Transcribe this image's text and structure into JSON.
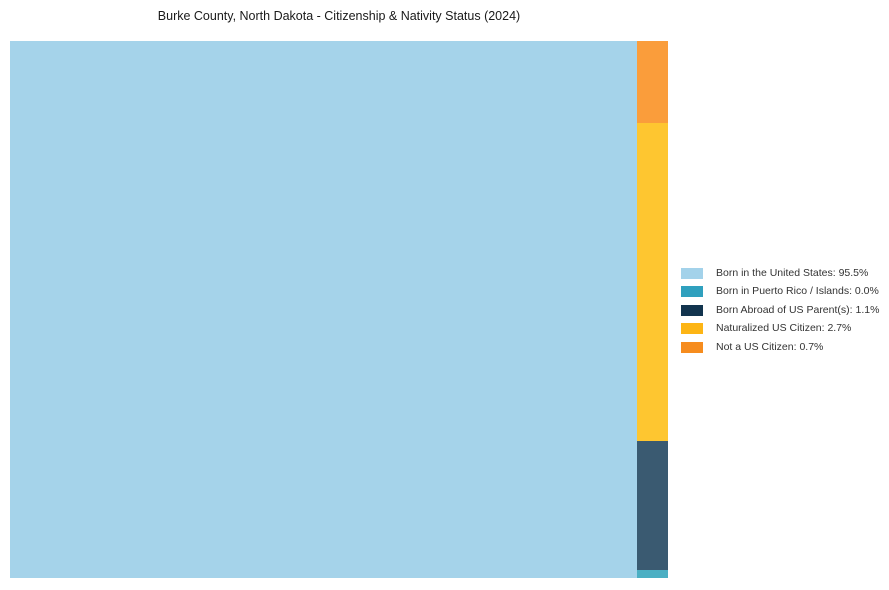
{
  "title": "Burke County, North Dakota - Citizenship & Nativity Status (2024)",
  "chart_data": {
    "type": "treemap",
    "title": "Burke County, North Dakota - Citizenship & Nativity Status (2024)",
    "unit": "%",
    "legend_position": "right",
    "grid": false,
    "layout_note": "single large block at left for dominant category; remaining categories stacked top-to-bottom in a narrow right column ordered: Not a US Citizen, Naturalized US Citizen, Born Abroad of US Parent(s), Born in Puerto Rico / Islands",
    "series": [
      {
        "name": "Born in the United States",
        "value": 95.5,
        "label": "Born in the United States: 95.5%",
        "legend_color": "#A3D2EA",
        "block_color": "#A5D3EA"
      },
      {
        "name": "Born in Puerto Rico / Islands",
        "value": 0.0,
        "label": "Born in Puerto Rico / Islands: 0.0%",
        "legend_color": "#2FA0BE",
        "block_color": "#4BAFC3"
      },
      {
        "name": "Born Abroad of US Parent(s)",
        "value": 1.1,
        "label": "Born Abroad of US Parent(s): 1.1%",
        "legend_color": "#12344E",
        "block_color": "#3A5A71"
      },
      {
        "name": "Naturalized US Citizen",
        "value": 2.7,
        "label": "Naturalized US Citizen: 2.7%",
        "legend_color": "#FDB515",
        "block_color": "#FEC630"
      },
      {
        "name": "Not a US Citizen",
        "value": 0.7,
        "label": "Not a US Citizen: 0.7%",
        "legend_color": "#F68C1E",
        "block_color": "#FA9D3B"
      }
    ]
  }
}
